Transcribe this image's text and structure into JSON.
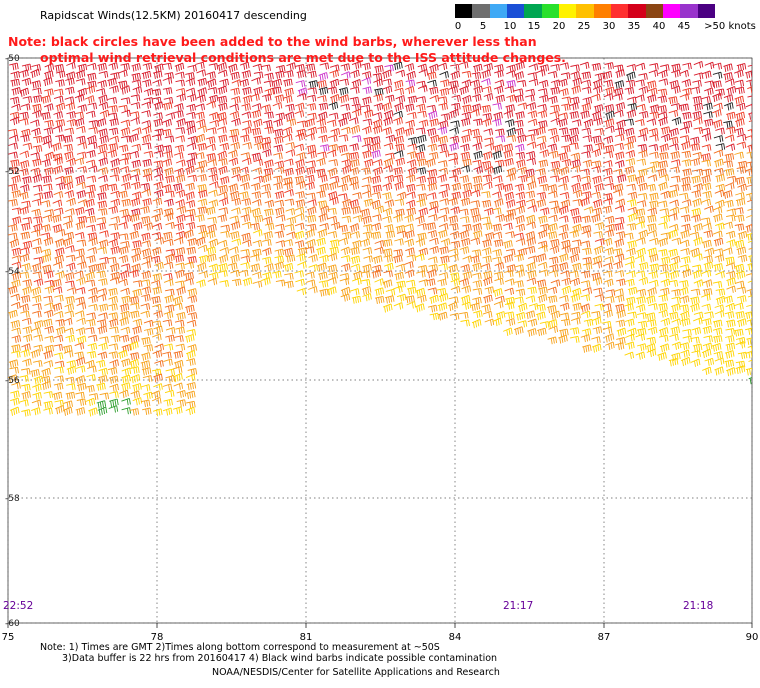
{
  "title": "Rapidscat Winds(12.5KM) 20160417 descending",
  "note_lines": [
    "Note: black circles have been added to the wind barbs, wherever less than",
    "optimal wind retrieval conditions are met due to the ISS attitude changes."
  ],
  "color_scale": {
    "colors": [
      "#000000",
      "#6e6e6e",
      "#3fa9f5",
      "#1a4fd6",
      "#00a651",
      "#29e02c",
      "#fff200",
      "#ffc000",
      "#ff7f00",
      "#ff3030",
      "#d4001a",
      "#8b4513",
      "#ff00ff",
      "#9933cc",
      "#4b0082"
    ],
    "labels": [
      "0",
      "5",
      "10",
      "15",
      "20",
      "25",
      "30",
      "35",
      "40",
      "45",
      ">50 knots"
    ]
  },
  "map": {
    "lon_ticks": [
      "75",
      "78",
      "81",
      "84",
      "87",
      "90"
    ],
    "lat_ticks": [
      "-50",
      "-52",
      "-54",
      "-56",
      "-58",
      "-60"
    ],
    "pass_times": [
      "22:52",
      "21:17",
      "21:18"
    ]
  },
  "footer": {
    "line1": "Note: 1) Times are GMT 2)Times along bottom correspond to measurement at ~50S",
    "line2": "3)Data buffer is 22 hrs from 20160417 4) Black wind barbs indicate possible contamination",
    "line3": "NOAA/NESDIS/Center for Satellite Applications and Research"
  }
}
